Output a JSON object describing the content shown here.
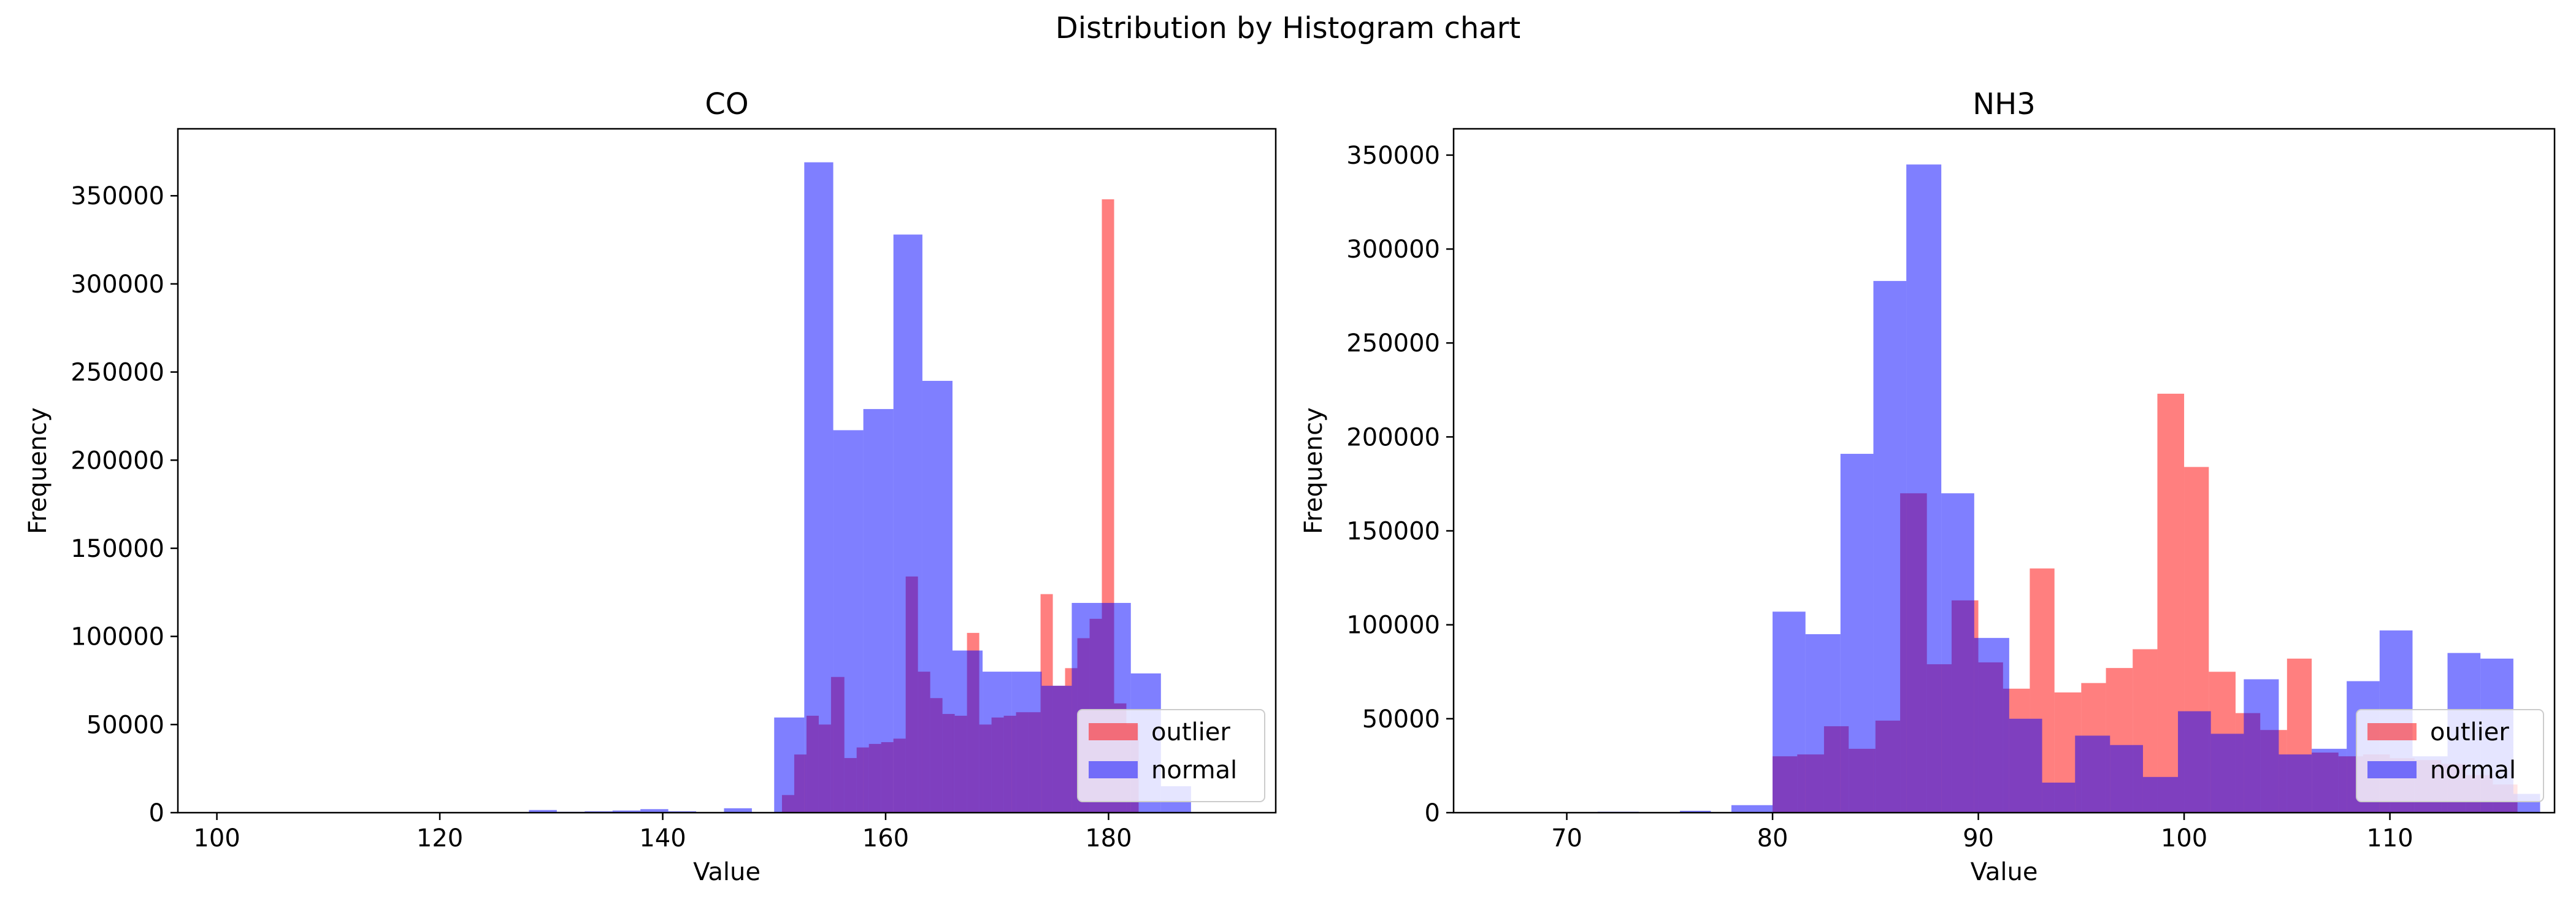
{
  "figure": {
    "title": "Distribution by Histogram chart"
  },
  "colors": {
    "outlier": "#ff0000",
    "normal": "#0000ff",
    "bar_opacity": 0.5
  },
  "chart_data": [
    {
      "type": "bar",
      "subtype": "histogram-overlay",
      "title": "CO",
      "xlabel": "Value",
      "ylabel": "Frequency",
      "xlim": [
        96.5,
        195
      ],
      "ylim": [
        0,
        388000
      ],
      "xticks": [
        100,
        120,
        140,
        160,
        180
      ],
      "yticks": [
        0,
        50000,
        100000,
        150000,
        200000,
        250000,
        300000,
        350000
      ],
      "legend": {
        "placement": "lower-right",
        "entries": [
          "outlier",
          "normal"
        ]
      },
      "series": [
        {
          "name": "outlier",
          "color_key": "outlier",
          "bins": [
            [
              150.7,
              151.8,
              10000
            ],
            [
              151.8,
              152.9,
              33000
            ],
            [
              152.9,
              154.0,
              55000
            ],
            [
              154.0,
              155.1,
              50000
            ],
            [
              155.1,
              156.3,
              77000
            ],
            [
              156.3,
              157.4,
              31000
            ],
            [
              157.4,
              158.5,
              37000
            ],
            [
              158.5,
              159.6,
              39000
            ],
            [
              159.6,
              160.7,
              40000
            ],
            [
              160.7,
              161.8,
              42000
            ],
            [
              161.8,
              162.9,
              134000
            ],
            [
              162.9,
              164.0,
              80000
            ],
            [
              164.0,
              165.1,
              65000
            ],
            [
              165.1,
              166.2,
              56000
            ],
            [
              166.2,
              167.3,
              55000
            ],
            [
              167.3,
              168.4,
              102000
            ],
            [
              168.4,
              169.5,
              50000
            ],
            [
              169.5,
              170.6,
              54000
            ],
            [
              170.6,
              171.7,
              55000
            ],
            [
              171.7,
              172.8,
              57000
            ],
            [
              172.8,
              173.9,
              57000
            ],
            [
              173.9,
              175.0,
              124000
            ],
            [
              175.0,
              176.1,
              72000
            ],
            [
              176.1,
              177.2,
              82000
            ],
            [
              177.2,
              178.3,
              99000
            ],
            [
              178.3,
              179.4,
              110000
            ],
            [
              179.4,
              180.5,
              348000
            ],
            [
              180.5,
              181.6,
              62000
            ],
            [
              181.6,
              182.7,
              50000
            ]
          ]
        },
        {
          "name": "normal",
          "color_key": "normal",
          "bins": [
            [
              128,
              130.5,
              1500
            ],
            [
              130.5,
              133,
              500
            ],
            [
              133,
              135.5,
              800
            ],
            [
              135.5,
              138,
              1200
            ],
            [
              138,
              140.5,
              2000
            ],
            [
              140.5,
              143,
              800
            ],
            [
              145.5,
              148,
              2500
            ],
            [
              150,
              152.7,
              54000
            ],
            [
              152.7,
              155.3,
              369000
            ],
            [
              155.3,
              158,
              217000
            ],
            [
              158,
              160.7,
              229000
            ],
            [
              160.7,
              163.3,
              328000
            ],
            [
              163.3,
              166,
              245000
            ],
            [
              166,
              168.7,
              92000
            ],
            [
              168.7,
              171.3,
              80000
            ],
            [
              171.3,
              174,
              80000
            ],
            [
              174,
              176.7,
              72000
            ],
            [
              176.7,
              179.4,
              119000
            ],
            [
              179.4,
              182,
              119000
            ],
            [
              182,
              184.7,
              79000
            ],
            [
              184.7,
              187.4,
              15000
            ]
          ]
        }
      ]
    },
    {
      "type": "bar",
      "subtype": "histogram-overlay",
      "title": "NH3",
      "xlabel": "Value",
      "ylabel": "Frequency",
      "xlim": [
        64.5,
        118
      ],
      "ylim": [
        0,
        364000
      ],
      "xticks": [
        70,
        80,
        90,
        100,
        110
      ],
      "yticks": [
        0,
        50000,
        100000,
        150000,
        200000,
        250000,
        300000,
        350000
      ],
      "legend": {
        "placement": "lower-right",
        "entries": [
          "outlier",
          "normal"
        ]
      },
      "series": [
        {
          "name": "outlier",
          "color_key": "outlier",
          "bins": [
            [
              80.0,
              81.2,
              30000
            ],
            [
              81.2,
              82.5,
              31000
            ],
            [
              82.5,
              83.7,
              46000
            ],
            [
              83.7,
              85.0,
              34000
            ],
            [
              85.0,
              86.2,
              49000
            ],
            [
              86.2,
              87.5,
              170000
            ],
            [
              87.5,
              88.7,
              79000
            ],
            [
              88.7,
              90.0,
              113000
            ],
            [
              90.0,
              91.2,
              80000
            ],
            [
              91.2,
              92.5,
              66000
            ],
            [
              92.5,
              93.7,
              130000
            ],
            [
              93.7,
              95.0,
              64000
            ],
            [
              95.0,
              96.2,
              69000
            ],
            [
              96.2,
              97.5,
              77000
            ],
            [
              97.5,
              98.7,
              87000
            ],
            [
              98.7,
              100.0,
              223000
            ],
            [
              100.0,
              101.2,
              184000
            ],
            [
              101.2,
              102.5,
              75000
            ],
            [
              102.5,
              103.7,
              53000
            ],
            [
              103.7,
              105.0,
              44000
            ],
            [
              105.0,
              106.2,
              82000
            ],
            [
              106.2,
              107.5,
              32000
            ],
            [
              107.5,
              108.7,
              30000
            ],
            [
              108.7,
              110.0,
              31000
            ],
            [
              110.0,
              111.2,
              29000
            ],
            [
              111.2,
              112.5,
              28000
            ],
            [
              112.5,
              113.7,
              26000
            ],
            [
              113.7,
              115.0,
              20000
            ],
            [
              115.0,
              116.2,
              15000
            ]
          ]
        },
        {
          "name": "normal",
          "color_key": "normal",
          "bins": [
            [
              71.5,
              73.5,
              500
            ],
            [
              75.5,
              77.0,
              1000
            ],
            [
              78.0,
              80.0,
              4000
            ],
            [
              80.0,
              81.6,
              107000
            ],
            [
              81.6,
              83.3,
              95000
            ],
            [
              83.3,
              84.9,
              191000
            ],
            [
              84.9,
              86.5,
              283000
            ],
            [
              86.5,
              88.2,
              345000
            ],
            [
              88.2,
              89.8,
              170000
            ],
            [
              89.8,
              91.5,
              93000
            ],
            [
              91.5,
              93.1,
              50000
            ],
            [
              93.1,
              94.7,
              16000
            ],
            [
              94.7,
              96.4,
              41000
            ],
            [
              96.4,
              98.0,
              36000
            ],
            [
              98.0,
              99.7,
              19000
            ],
            [
              99.7,
              101.3,
              54000
            ],
            [
              101.3,
              102.9,
              42000
            ],
            [
              102.9,
              104.6,
              71000
            ],
            [
              104.6,
              106.2,
              31000
            ],
            [
              106.2,
              107.9,
              34000
            ],
            [
              107.9,
              109.5,
              70000
            ],
            [
              109.5,
              111.1,
              97000
            ],
            [
              111.1,
              112.8,
              30000
            ],
            [
              112.8,
              114.4,
              85000
            ],
            [
              114.4,
              116.0,
              82000
            ],
            [
              116.0,
              117.3,
              10000
            ]
          ]
        }
      ]
    }
  ]
}
